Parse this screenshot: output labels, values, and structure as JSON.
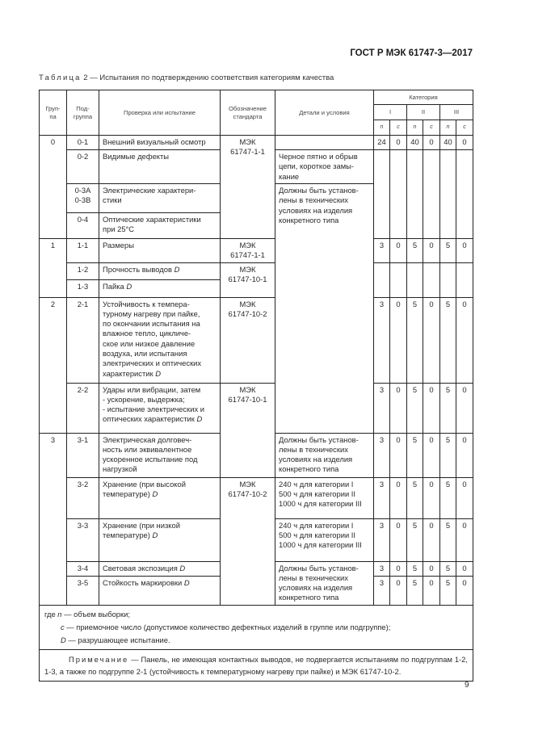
{
  "header": {
    "doc_id": "ГОСТ Р МЭК 61747-3—2017"
  },
  "caption": {
    "label": "Таблица",
    "number": "2",
    "title": "— Испытания по подтверждению соответствия категориям качества"
  },
  "table": {
    "headers": {
      "group": "Груп-\nпа",
      "subgroup": "Под-\nгруппа",
      "test": "Проверка или испытание",
      "standard": "Обозначение\nстандарта",
      "details": "Детали и условия",
      "category": "Категория",
      "categories": [
        "I",
        "II",
        "III"
      ],
      "n": "n",
      "c": "c"
    },
    "groups": [
      "0",
      "1",
      "2",
      "3"
    ],
    "standards": [
      "МЭК\n61747-1-1",
      "МЭК\n61747-1-1",
      "МЭК\n61747-10-1",
      "МЭК\n61747-10-2",
      "МЭК\n61747-10-1",
      "МЭК\n61747-10-2"
    ],
    "details": [
      "",
      "Черное пятно и обрыв\nцепи, короткое замы-\nкание",
      "Должны быть установ-\nлены в технических\nусловиях на изделия\nконкретного типа",
      "Должны быть установ-\nлены в технических\nусловиях на изделия\nконкретного типа",
      "240 ч для категории I\n500 ч для категории II\n1000 ч для категории III",
      "240 ч для категории I\n500 ч для категории II\n1000 ч для категории III",
      "Должны быть установ-\nлены в технических\nусловиях на изделия\nконкретного типа"
    ],
    "rows": [
      {
        "sub": "0-1",
        "test": "Внешний визуальный осмотр",
        "mark": "",
        "values": [
          "24",
          "0",
          "40",
          "0",
          "40",
          "0"
        ]
      },
      {
        "sub": "0-2",
        "test": "Видимые дефекты",
        "mark": "",
        "values": []
      },
      {
        "sub": "0-3A\n0-3B",
        "test": "Электрические характери-\nстики",
        "mark": "",
        "values": []
      },
      {
        "sub": "0-4",
        "test": "Оптические   характеристики\nпри 25°C",
        "mark": "",
        "values": []
      },
      {
        "sub": "1-1",
        "test": "Размеры",
        "mark": "",
        "values": [
          "3",
          "0",
          "5",
          "0",
          "5",
          "0"
        ]
      },
      {
        "sub": "1-2",
        "test": "Прочность выводов ",
        "mark": "D",
        "values": []
      },
      {
        "sub": "1-3",
        "test": "Пайка ",
        "mark": "D",
        "values": []
      },
      {
        "sub": "2-1",
        "test": "Устойчивость к темпера-\nтурному нагреву при пайке,\nпо окончании испытания на\nвлажное тепло, цикличе-\nское или низкое давление\nвоздуха, или испытания\nэлектрических и оптических\nхарактеристик ",
        "mark": "D",
        "values": [
          "3",
          "0",
          "5",
          "0",
          "5",
          "0"
        ]
      },
      {
        "sub": "2-2",
        "test": "Удары или вибрации, затем\n- ускорение, выдержка;\n- испытание электрических и\nоптических характеристик ",
        "mark": "D",
        "values": [
          "3",
          "0",
          "5",
          "0",
          "5",
          "0"
        ]
      },
      {
        "sub": "3-1",
        "test": "Электрическая долговеч-\nность или эквивалентное\nускоренное испытание под\nнагрузкой",
        "mark": "",
        "values": [
          "3",
          "0",
          "5",
          "0",
          "5",
          "0"
        ]
      },
      {
        "sub": "3-2",
        "test": "Хранение (при высокой\nтемпературе) ",
        "mark": "D",
        "values": [
          "3",
          "0",
          "5",
          "0",
          "5",
          "0"
        ]
      },
      {
        "sub": "3-3",
        "test": "Хранение (при низкой\nтемпературе) ",
        "mark": "D",
        "values": [
          "3",
          "0",
          "5",
          "0",
          "5",
          "0"
        ]
      },
      {
        "sub": "3-4",
        "test": "Световая экспозиция ",
        "mark": "D",
        "values": [
          "3",
          "0",
          "5",
          "0",
          "5",
          "0"
        ]
      },
      {
        "sub": "3-5",
        "test": "Стойкость маркировки ",
        "mark": "D",
        "values": [
          "3",
          "0",
          "5",
          "0",
          "5",
          "0"
        ]
      }
    ],
    "legend": [
      {
        "prefix": "где ",
        "sym": "n",
        "text": " — объем выборки;"
      },
      {
        "prefix": "",
        "sym": "c",
        "text": " — приемочное число (допустимое количество дефектных изделий в группе или подгруппе);"
      },
      {
        "prefix": "",
        "sym": "D",
        "text": " — разрушающее испытание."
      }
    ],
    "remark": {
      "title": "Примечание",
      "text": " — Панель, не имеющая контактных выводов, не подвергается испытаниям по подгруппам 1-2, 1-3, а также по подгруппе 2-1 (устойчивость к температурному нагреву при пайке) и МЭК 61747-10-2."
    }
  },
  "page_number": "9"
}
